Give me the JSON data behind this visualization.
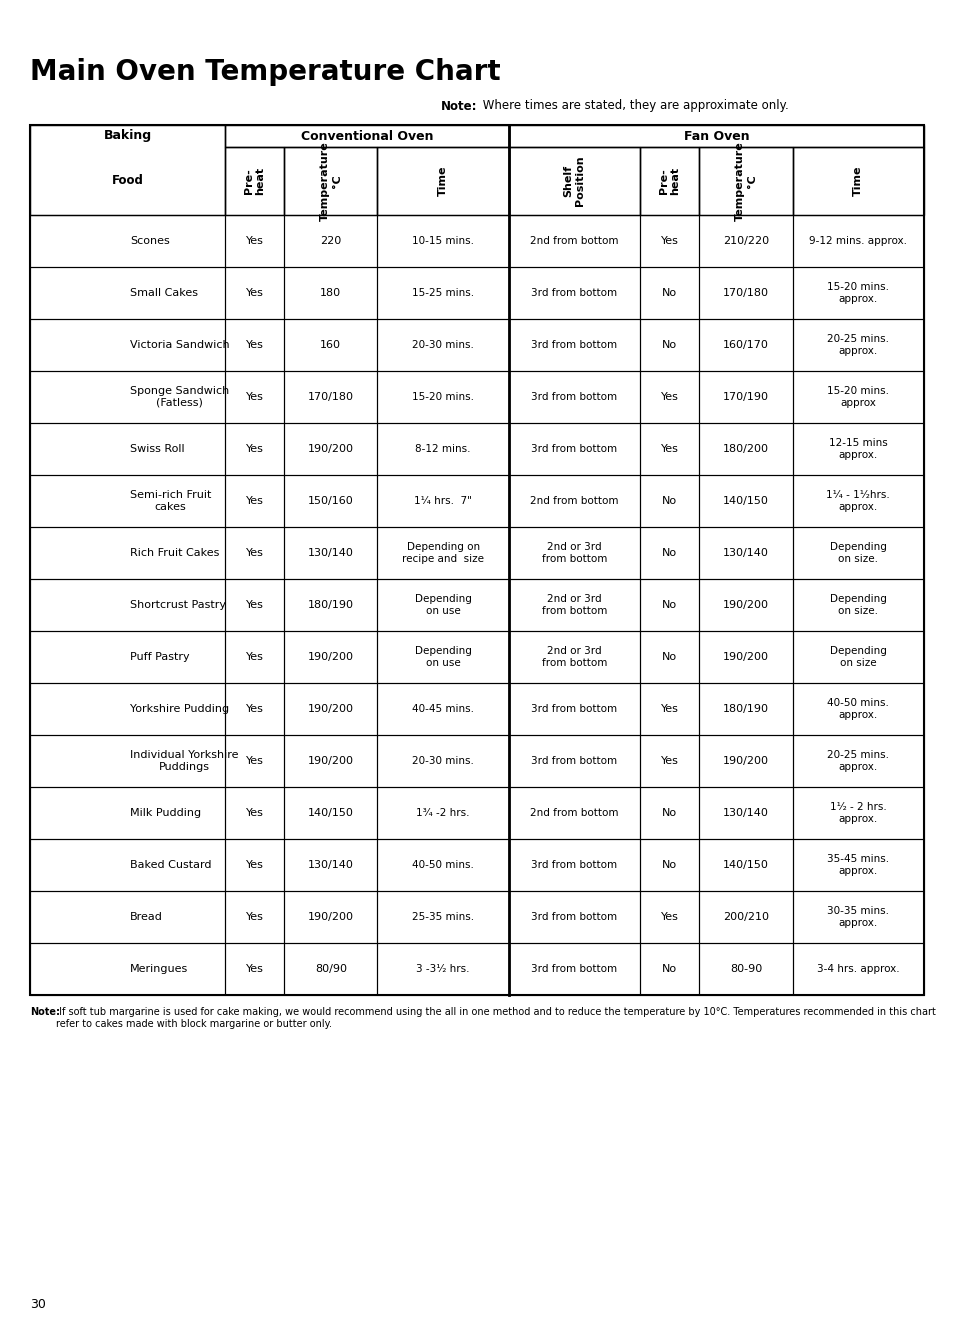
{
  "title": "Main Oven Temperature Chart",
  "note_bold": "Note:",
  "note_text": " Where times are stated, they are approximate only.",
  "footer_note_bold": "Note:",
  "footer_note_text": " If soft tub margarine is used for cake making, we would recommend using the all in one method and to reduce the temperature by 10°C. Temperatures recommended in this chart refer to cakes made with block margarine or butter only.",
  "page_number": "30",
  "col_headers_rotated": [
    "Pre-\nheat",
    "Temperature\n°C",
    "Time",
    "Shelf\nPosition",
    "Pre-\nheat",
    "Temperature\n°C",
    "Time"
  ],
  "group_headers": {
    "baking": "Baking",
    "conventional_oven": "Conventional Oven",
    "fan_oven": "Fan Oven"
  },
  "sub_header_food": "Food",
  "rows": [
    {
      "food": "Scones",
      "conv_preheat": "Yes",
      "conv_temp": "220",
      "conv_time": "10-15 mins.",
      "shelf_position": "2nd from bottom",
      "fan_preheat": "Yes",
      "fan_temp": "210/220",
      "fan_time": "9-12 mins. approx."
    },
    {
      "food": "Small Cakes",
      "conv_preheat": "Yes",
      "conv_temp": "180",
      "conv_time": "15-25 mins.",
      "shelf_position": "3rd from bottom",
      "fan_preheat": "No",
      "fan_temp": "170/180",
      "fan_time": "15-20 mins.\napprox."
    },
    {
      "food": "Victoria Sandwich",
      "conv_preheat": "Yes",
      "conv_temp": "160",
      "conv_time": "20-30 mins.",
      "shelf_position": "3rd from bottom",
      "fan_preheat": "No",
      "fan_temp": "160/170",
      "fan_time": "20-25 mins.\napprox."
    },
    {
      "food": "Sponge Sandwich\n(Fatless)",
      "conv_preheat": "Yes",
      "conv_temp": "170/180",
      "conv_time": "15-20 mins.",
      "shelf_position": "3rd from bottom",
      "fan_preheat": "Yes",
      "fan_temp": "170/190",
      "fan_time": "15-20 mins.\napprox"
    },
    {
      "food": "Swiss Roll",
      "conv_preheat": "Yes",
      "conv_temp": "190/200",
      "conv_time": "8-12 mins.",
      "shelf_position": "3rd from bottom",
      "fan_preheat": "Yes",
      "fan_temp": "180/200",
      "fan_time": "12-15 mins\napprox."
    },
    {
      "food": "Semi-rich Fruit\ncakes",
      "conv_preheat": "Yes",
      "conv_temp": "150/160",
      "conv_time": "1¹⁄₄ hrs.  7\"",
      "shelf_position": "2nd from bottom",
      "fan_preheat": "No",
      "fan_temp": "140/150",
      "fan_time": "1¹⁄₄ - 1¹⁄₂hrs.\napprox."
    },
    {
      "food": "Rich Fruit Cakes",
      "conv_preheat": "Yes",
      "conv_temp": "130/140",
      "conv_time": "Depending on\nrecipe and  size",
      "shelf_position": "2nd or 3rd\nfrom bottom",
      "fan_preheat": "No",
      "fan_temp": "130/140",
      "fan_time": "Depending\non size."
    },
    {
      "food": "Shortcrust Pastry",
      "conv_preheat": "Yes",
      "conv_temp": "180/190",
      "conv_time": "Depending\non use",
      "shelf_position": "2nd or 3rd\nfrom bottom",
      "fan_preheat": "No",
      "fan_temp": "190/200",
      "fan_time": "Depending\non size."
    },
    {
      "food": "Puff Pastry",
      "conv_preheat": "Yes",
      "conv_temp": "190/200",
      "conv_time": "Depending\non use",
      "shelf_position": "2nd or 3rd\nfrom bottom",
      "fan_preheat": "No",
      "fan_temp": "190/200",
      "fan_time": "Depending\non size"
    },
    {
      "food": "Yorkshire Pudding",
      "conv_preheat": "Yes",
      "conv_temp": "190/200",
      "conv_time": "40-45 mins.",
      "shelf_position": "3rd from bottom",
      "fan_preheat": "Yes",
      "fan_temp": "180/190",
      "fan_time": "40-50 mins.\napprox."
    },
    {
      "food": "Individual Yorkshire\nPuddings",
      "conv_preheat": "Yes",
      "conv_temp": "190/200",
      "conv_time": "20-30 mins.",
      "shelf_position": "3rd from bottom",
      "fan_preheat": "Yes",
      "fan_temp": "190/200",
      "fan_time": "20-25 mins.\napprox."
    },
    {
      "food": "Milk Pudding",
      "conv_preheat": "Yes",
      "conv_temp": "140/150",
      "conv_time": "1³⁄₄ -2 hrs.",
      "shelf_position": "2nd from bottom",
      "fan_preheat": "No",
      "fan_temp": "130/140",
      "fan_time": "1¹⁄₂ - 2 hrs.\napprox."
    },
    {
      "food": "Baked Custard",
      "conv_preheat": "Yes",
      "conv_temp": "130/140",
      "conv_time": "40-50 mins.",
      "shelf_position": "3rd from bottom",
      "fan_preheat": "No",
      "fan_temp": "140/150",
      "fan_time": "35-45 mins.\napprox."
    },
    {
      "food": "Bread",
      "conv_preheat": "Yes",
      "conv_temp": "190/200",
      "conv_time": "25-35 mins.",
      "shelf_position": "3rd from bottom",
      "fan_preheat": "Yes",
      "fan_temp": "200/210",
      "fan_time": "30-35 mins.\napprox."
    },
    {
      "food": "Meringues",
      "conv_preheat": "Yes",
      "conv_temp": "80/90",
      "conv_time": "3 -3¹⁄₂ hrs.",
      "shelf_position": "3rd from bottom",
      "fan_preheat": "No",
      "fan_temp": "80-90",
      "fan_time": "3-4 hrs. approx."
    }
  ]
}
